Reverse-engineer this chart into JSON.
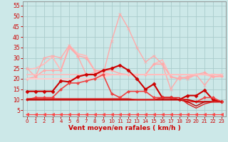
{
  "background_color": "#cce8e8",
  "grid_color": "#aacccc",
  "xlabel": "Vent moyen/en rafales ( km/h )",
  "xlim": [
    -0.5,
    23.5
  ],
  "ylim": [
    2,
    57
  ],
  "yticks": [
    5,
    10,
    15,
    20,
    25,
    30,
    35,
    40,
    45,
    50,
    55
  ],
  "xticks": [
    0,
    1,
    2,
    3,
    4,
    5,
    6,
    7,
    8,
    9,
    10,
    11,
    12,
    13,
    14,
    15,
    16,
    17,
    18,
    19,
    20,
    21,
    22,
    23
  ],
  "series": [
    {
      "x": [
        0,
        1,
        2,
        3,
        4,
        5,
        6,
        7,
        8,
        9,
        10,
        11,
        12,
        13,
        14,
        15,
        16,
        17,
        18,
        19,
        20,
        21,
        22,
        23
      ],
      "y": [
        24.5,
        25,
        27,
        30.5,
        24,
        36,
        32,
        31,
        24,
        23,
        22,
        22,
        22,
        22,
        22,
        27,
        29,
        21,
        20,
        21,
        22,
        22,
        21,
        21
      ],
      "color": "#ffbbbb",
      "lw": 1.3,
      "marker": null,
      "ms": 0
    },
    {
      "x": [
        0,
        1,
        2,
        3,
        4,
        5,
        6,
        7,
        8,
        9,
        10,
        11,
        12,
        13,
        14,
        15,
        16,
        17,
        18,
        19,
        20,
        21,
        22,
        23
      ],
      "y": [
        20,
        21,
        24,
        24,
        24,
        35,
        31,
        30,
        24,
        24,
        24,
        22.5,
        22,
        22,
        22,
        27,
        27,
        21,
        20,
        21,
        22,
        23,
        21,
        21.5
      ],
      "color": "#ffaaaa",
      "lw": 1.1,
      "marker": "D",
      "ms": 2.0
    },
    {
      "x": [
        0,
        1,
        2,
        3,
        4,
        5,
        6,
        7,
        8,
        9,
        10,
        11,
        12,
        13,
        14,
        15,
        16,
        17,
        18,
        19,
        20,
        21,
        22,
        23
      ],
      "y": [
        25,
        21,
        30,
        31,
        30,
        36,
        31,
        22,
        23,
        22,
        38,
        51,
        44,
        35,
        28,
        31,
        27,
        15,
        21,
        20,
        22,
        17,
        22,
        22
      ],
      "color": "#ffaaaa",
      "lw": 1.0,
      "marker": "x",
      "ms": 3
    },
    {
      "x": [
        0,
        1,
        2,
        3,
        4,
        5,
        6,
        7,
        8,
        9,
        10,
        11,
        12,
        13,
        14,
        15,
        16,
        17,
        18,
        19,
        20,
        21,
        22,
        23
      ],
      "y": [
        20,
        20,
        20,
        20,
        20,
        20,
        20,
        20,
        20,
        21,
        22,
        22,
        22,
        22,
        22,
        22,
        22,
        22,
        22,
        22,
        22,
        22,
        22,
        22
      ],
      "color": "#ffcccc",
      "lw": 1.5,
      "marker": null,
      "ms": 0
    },
    {
      "x": [
        0,
        1,
        2,
        3,
        4,
        5,
        6,
        7,
        8,
        9,
        10,
        11,
        12,
        13,
        14,
        15,
        16,
        17,
        18,
        19,
        20,
        21,
        22,
        23
      ],
      "y": [
        22,
        22,
        22,
        22,
        22,
        22,
        22,
        22,
        22,
        22,
        22,
        22,
        22,
        22,
        22,
        22,
        22,
        22,
        22,
        22,
        22,
        22,
        22,
        22
      ],
      "color": "#ffbbbb",
      "lw": 1.2,
      "marker": null,
      "ms": 0
    },
    {
      "x": [
        0,
        1,
        2,
        3,
        4,
        5,
        6,
        7,
        8,
        9,
        10,
        11,
        12,
        13,
        14,
        15,
        16,
        17,
        18,
        19,
        20,
        21,
        22,
        23
      ],
      "y": [
        14,
        14,
        14,
        14,
        19,
        18.5,
        21,
        22,
        22,
        24,
        25,
        26.5,
        24,
        20,
        15,
        17.5,
        11,
        11,
        10,
        12,
        12,
        14.5,
        10,
        9
      ],
      "color": "#cc0000",
      "lw": 1.5,
      "marker": "D",
      "ms": 2.5
    },
    {
      "x": [
        0,
        1,
        2,
        3,
        4,
        5,
        6,
        7,
        8,
        9,
        10,
        11,
        12,
        13,
        14,
        15,
        16,
        17,
        18,
        19,
        20,
        21,
        22,
        23
      ],
      "y": [
        10,
        11,
        11,
        11,
        15,
        18,
        18,
        19,
        20,
        22,
        13,
        11,
        14,
        14,
        14,
        11,
        11,
        11,
        10,
        9,
        9,
        11,
        11,
        9
      ],
      "color": "#ee4444",
      "lw": 1.2,
      "marker": "D",
      "ms": 2.0
    },
    {
      "x": [
        0,
        1,
        2,
        3,
        4,
        5,
        6,
        7,
        8,
        9,
        10,
        11,
        12,
        13,
        14,
        15,
        16,
        17,
        18,
        19,
        20,
        21,
        22,
        23
      ],
      "y": [
        10,
        10,
        10,
        10,
        10,
        10,
        10,
        10,
        10,
        10,
        10,
        10,
        10,
        10,
        10,
        10,
        10,
        10,
        10,
        10,
        9,
        9,
        9,
        9
      ],
      "color": "#cc0000",
      "lw": 1.5,
      "marker": null,
      "ms": 0
    },
    {
      "x": [
        0,
        1,
        2,
        3,
        4,
        5,
        6,
        7,
        8,
        9,
        10,
        11,
        12,
        13,
        14,
        15,
        16,
        17,
        18,
        19,
        20,
        21,
        22,
        23
      ],
      "y": [
        10,
        10,
        10,
        10,
        10,
        10,
        10,
        10,
        10,
        10,
        10,
        10,
        10,
        10,
        10,
        10,
        10,
        10,
        10,
        9,
        7,
        9,
        9,
        9
      ],
      "color": "#bb0000",
      "lw": 1.0,
      "marker": null,
      "ms": 0
    },
    {
      "x": [
        0,
        1,
        2,
        3,
        4,
        5,
        6,
        7,
        8,
        9,
        10,
        11,
        12,
        13,
        14,
        15,
        16,
        17,
        18,
        19,
        20,
        21,
        22,
        23
      ],
      "y": [
        10.5,
        10.5,
        10.5,
        10.5,
        10.5,
        10.5,
        10.5,
        10.5,
        10.5,
        10.5,
        10.5,
        10.5,
        10.5,
        10,
        10,
        10,
        11,
        11,
        11,
        8,
        6,
        8,
        9,
        9
      ],
      "color": "#dd2222",
      "lw": 1.0,
      "marker": null,
      "ms": 0
    },
    {
      "x": [
        0,
        1,
        2,
        3,
        4,
        5,
        6,
        7,
        8,
        9,
        10,
        11,
        12,
        13,
        14,
        15,
        16,
        17,
        18,
        19,
        20,
        21,
        22,
        23
      ],
      "y": [
        3,
        3,
        3,
        3,
        3,
        3,
        3,
        3,
        3,
        3,
        3,
        3,
        3,
        3,
        3,
        3,
        3,
        3,
        3,
        3,
        3,
        3,
        3,
        3
      ],
      "color": "#ff4444",
      "lw": 0.8,
      "marker": "<",
      "ms": 3
    }
  ]
}
